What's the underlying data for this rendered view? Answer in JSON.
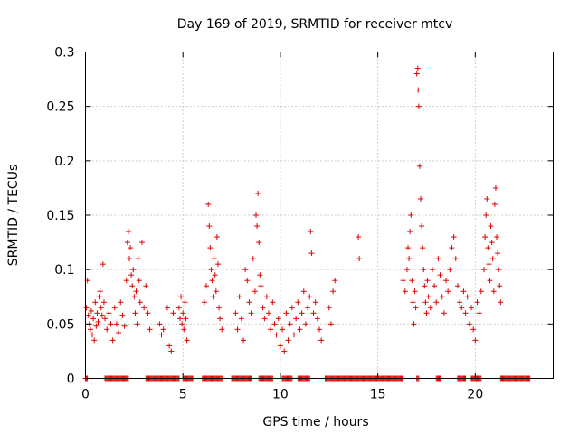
{
  "chart_data": {
    "type": "scatter",
    "title": "Day 169 of 2019, SRMTID for receiver mtcv",
    "xlabel": "GPS time / hours",
    "ylabel": "SRMTID / TECUs",
    "xlim": [
      0,
      24
    ],
    "ylim": [
      0,
      0.3
    ],
    "xticks": [
      0,
      5,
      10,
      15,
      20
    ],
    "xtick_labels": [
      "0",
      "5",
      "10",
      "15",
      "20"
    ],
    "yticks": [
      0,
      0.05,
      0.1,
      0.15,
      0.2,
      0.25,
      0.3
    ],
    "ytick_labels": [
      "0",
      "0.05",
      "0.1",
      "0.15",
      "0.2",
      "0.25",
      "0.3"
    ],
    "grid": true,
    "marker": "+",
    "color": "#e00000",
    "series": [
      {
        "name": "SRMTID",
        "points": [
          [
            0.05,
            0.065
          ],
          [
            0.1,
            0.09
          ],
          [
            0.15,
            0.058
          ],
          [
            0.2,
            0.05
          ],
          [
            0.25,
            0.045
          ],
          [
            0.3,
            0.062
          ],
          [
            0.35,
            0.04
          ],
          [
            0.4,
            0.055
          ],
          [
            0.45,
            0.035
          ],
          [
            0.5,
            0.07
          ],
          [
            0.55,
            0.048
          ],
          [
            0.6,
            0.06
          ],
          [
            0.65,
            0.052
          ],
          [
            0.7,
            0.075
          ],
          [
            0.75,
            0.08
          ],
          [
            0.8,
            0.065
          ],
          [
            0.85,
            0.058
          ],
          [
            0.9,
            0.105
          ],
          [
            0.95,
            0.07
          ],
          [
            1.0,
            0.055
          ],
          [
            1.1,
            0.045
          ],
          [
            1.2,
            0.06
          ],
          [
            1.3,
            0.05
          ],
          [
            1.4,
            0.035
          ],
          [
            1.5,
            0.065
          ],
          [
            1.6,
            0.05
          ],
          [
            1.7,
            0.042
          ],
          [
            1.8,
            0.07
          ],
          [
            1.9,
            0.058
          ],
          [
            2.0,
            0.048
          ],
          [
            2.1,
            0.09
          ],
          [
            2.15,
            0.125
          ],
          [
            2.2,
            0.135
          ],
          [
            2.25,
            0.11
          ],
          [
            2.3,
            0.12
          ],
          [
            2.35,
            0.095
          ],
          [
            2.4,
            0.085
          ],
          [
            2.45,
            0.1
          ],
          [
            2.5,
            0.075
          ],
          [
            2.55,
            0.06
          ],
          [
            2.6,
            0.08
          ],
          [
            2.65,
            0.05
          ],
          [
            2.7,
            0.11
          ],
          [
            2.75,
            0.09
          ],
          [
            2.8,
            0.07
          ],
          [
            2.9,
            0.125
          ],
          [
            3.0,
            0.065
          ],
          [
            3.1,
            0.085
          ],
          [
            3.2,
            0.06
          ],
          [
            3.3,
            0.045
          ],
          [
            3.8,
            0.05
          ],
          [
            3.9,
            0.04
          ],
          [
            4.0,
            0.045
          ],
          [
            4.2,
            0.065
          ],
          [
            4.3,
            0.03
          ],
          [
            4.4,
            0.025
          ],
          [
            4.5,
            0.06
          ],
          [
            4.8,
            0.065
          ],
          [
            4.85,
            0.055
          ],
          [
            4.9,
            0.075
          ],
          [
            4.95,
            0.05
          ],
          [
            5.0,
            0.06
          ],
          [
            5.05,
            0.045
          ],
          [
            5.1,
            0.07
          ],
          [
            5.15,
            0.055
          ],
          [
            5.2,
            0.035
          ],
          [
            6.1,
            0.07
          ],
          [
            6.2,
            0.085
          ],
          [
            6.3,
            0.16
          ],
          [
            6.35,
            0.14
          ],
          [
            6.4,
            0.12
          ],
          [
            6.45,
            0.1
          ],
          [
            6.5,
            0.09
          ],
          [
            6.55,
            0.075
          ],
          [
            6.6,
            0.11
          ],
          [
            6.65,
            0.095
          ],
          [
            6.7,
            0.08
          ],
          [
            6.75,
            0.13
          ],
          [
            6.8,
            0.105
          ],
          [
            6.85,
            0.065
          ],
          [
            6.9,
            0.055
          ],
          [
            7.0,
            0.045
          ],
          [
            7.7,
            0.06
          ],
          [
            7.8,
            0.045
          ],
          [
            7.9,
            0.075
          ],
          [
            8.0,
            0.055
          ],
          [
            8.1,
            0.035
          ],
          [
            8.2,
            0.1
          ],
          [
            8.3,
            0.09
          ],
          [
            8.4,
            0.07
          ],
          [
            8.5,
            0.06
          ],
          [
            8.6,
            0.11
          ],
          [
            8.7,
            0.08
          ],
          [
            8.75,
            0.15
          ],
          [
            8.8,
            0.14
          ],
          [
            8.85,
            0.17
          ],
          [
            8.9,
            0.125
          ],
          [
            8.95,
            0.095
          ],
          [
            9.0,
            0.085
          ],
          [
            9.1,
            0.065
          ],
          [
            9.2,
            0.055
          ],
          [
            9.3,
            0.075
          ],
          [
            9.4,
            0.06
          ],
          [
            9.5,
            0.045
          ],
          [
            9.6,
            0.07
          ],
          [
            9.7,
            0.05
          ],
          [
            9.8,
            0.04
          ],
          [
            9.9,
            0.055
          ],
          [
            10.0,
            0.03
          ],
          [
            10.1,
            0.045
          ],
          [
            10.2,
            0.025
          ],
          [
            10.3,
            0.06
          ],
          [
            10.4,
            0.035
          ],
          [
            10.5,
            0.05
          ],
          [
            10.6,
            0.065
          ],
          [
            10.7,
            0.04
          ],
          [
            10.8,
            0.055
          ],
          [
            10.9,
            0.07
          ],
          [
            11.0,
            0.045
          ],
          [
            11.1,
            0.06
          ],
          [
            11.2,
            0.08
          ],
          [
            11.3,
            0.05
          ],
          [
            11.4,
            0.065
          ],
          [
            11.5,
            0.075
          ],
          [
            11.55,
            0.135
          ],
          [
            11.6,
            0.115
          ],
          [
            11.7,
            0.06
          ],
          [
            11.8,
            0.07
          ],
          [
            11.9,
            0.055
          ],
          [
            12.0,
            0.045
          ],
          [
            12.1,
            0.035
          ],
          [
            12.5,
            0.065
          ],
          [
            12.6,
            0.05
          ],
          [
            12.7,
            0.08
          ],
          [
            12.8,
            0.09
          ],
          [
            14.0,
            0.13
          ],
          [
            14.05,
            0.11
          ],
          [
            16.3,
            0.09
          ],
          [
            16.4,
            0.08
          ],
          [
            16.5,
            0.1
          ],
          [
            16.55,
            0.12
          ],
          [
            16.6,
            0.11
          ],
          [
            16.65,
            0.135
          ],
          [
            16.7,
            0.15
          ],
          [
            16.75,
            0.09
          ],
          [
            16.8,
            0.07
          ],
          [
            16.85,
            0.05
          ],
          [
            16.9,
            0.08
          ],
          [
            16.95,
            0.065
          ],
          [
            17.0,
            0.28
          ],
          [
            17.05,
            0.285
          ],
          [
            17.07,
            0.265
          ],
          [
            17.1,
            0.25
          ],
          [
            17.15,
            0.195
          ],
          [
            17.2,
            0.165
          ],
          [
            17.25,
            0.14
          ],
          [
            17.3,
            0.12
          ],
          [
            17.35,
            0.1
          ],
          [
            17.4,
            0.085
          ],
          [
            17.45,
            0.07
          ],
          [
            17.5,
            0.06
          ],
          [
            17.55,
            0.09
          ],
          [
            17.6,
            0.075
          ],
          [
            17.7,
            0.065
          ],
          [
            17.8,
            0.1
          ],
          [
            17.9,
            0.085
          ],
          [
            18.0,
            0.07
          ],
          [
            18.1,
            0.11
          ],
          [
            18.2,
            0.095
          ],
          [
            18.3,
            0.075
          ],
          [
            18.4,
            0.06
          ],
          [
            18.5,
            0.09
          ],
          [
            18.6,
            0.08
          ],
          [
            18.7,
            0.1
          ],
          [
            18.8,
            0.12
          ],
          [
            18.9,
            0.13
          ],
          [
            19.0,
            0.11
          ],
          [
            19.1,
            0.085
          ],
          [
            19.2,
            0.07
          ],
          [
            19.3,
            0.065
          ],
          [
            19.4,
            0.08
          ],
          [
            19.5,
            0.06
          ],
          [
            19.6,
            0.075
          ],
          [
            19.7,
            0.05
          ],
          [
            19.8,
            0.065
          ],
          [
            19.9,
            0.045
          ],
          [
            20.0,
            0.035
          ],
          [
            20.1,
            0.07
          ],
          [
            20.2,
            0.06
          ],
          [
            20.3,
            0.08
          ],
          [
            20.45,
            0.1
          ],
          [
            20.5,
            0.13
          ],
          [
            20.55,
            0.15
          ],
          [
            20.6,
            0.165
          ],
          [
            20.65,
            0.12
          ],
          [
            20.7,
            0.105
          ],
          [
            20.75,
            0.09
          ],
          [
            20.8,
            0.14
          ],
          [
            20.85,
            0.125
          ],
          [
            20.9,
            0.11
          ],
          [
            20.95,
            0.08
          ],
          [
            21.0,
            0.16
          ],
          [
            21.05,
            0.175
          ],
          [
            21.1,
            0.13
          ],
          [
            21.15,
            0.115
          ],
          [
            21.2,
            0.1
          ],
          [
            21.25,
            0.085
          ],
          [
            21.3,
            0.07
          ]
        ],
        "zero_segments": [
          [
            0.0,
            0.1
          ],
          [
            1.0,
            2.2
          ],
          [
            3.1,
            4.8
          ],
          [
            5.0,
            5.5
          ],
          [
            6.0,
            7.0
          ],
          [
            7.5,
            8.5
          ],
          [
            8.9,
            9.6
          ],
          [
            10.1,
            10.6
          ],
          [
            10.9,
            11.5
          ],
          [
            12.3,
            16.3
          ],
          [
            17.0,
            17.1
          ],
          [
            18.0,
            18.2
          ],
          [
            19.1,
            19.5
          ],
          [
            19.8,
            20.3
          ],
          [
            21.3,
            22.8
          ]
        ]
      }
    ]
  }
}
